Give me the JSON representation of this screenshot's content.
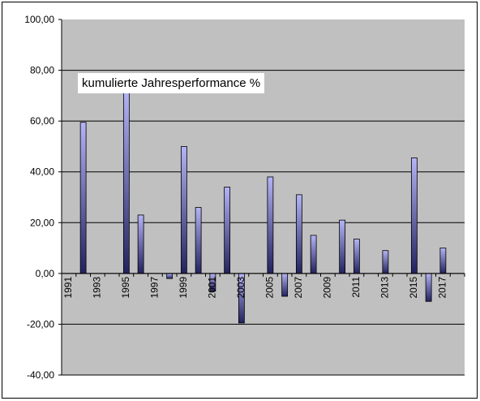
{
  "chart_data": {
    "type": "bar",
    "title": "kumulierte Jahresperformance %",
    "xlabel": "",
    "ylabel": "",
    "ylim": [
      -40,
      100
    ],
    "yticks": [
      100,
      80,
      60,
      40,
      20,
      0,
      -20,
      -40
    ],
    "ytick_labels": [
      "100,00",
      "80,00",
      "60,00",
      "40,00",
      "20,00",
      "0,00",
      "-20,00",
      "-40,00"
    ],
    "grid": "horizontal",
    "categories": [
      "1991",
      "1992",
      "1993",
      "1994",
      "1995",
      "1996",
      "1997",
      "1998",
      "1999",
      "2000",
      "2001",
      "2002",
      "2003",
      "2004",
      "2005",
      "2006",
      "2007",
      "2008",
      "2009",
      "2010",
      "2011",
      "2012",
      "2013",
      "2014",
      "2015",
      "2016",
      "2017",
      "2018"
    ],
    "xtick_labels": [
      "1991",
      "1993",
      "1995",
      "1997",
      "1999",
      "2001",
      "2003",
      "2005",
      "2007",
      "2009",
      "2011",
      "2013",
      "2015",
      "2017"
    ],
    "values": [
      null,
      59.5,
      null,
      null,
      72,
      23,
      null,
      -2,
      50,
      26,
      -7,
      34,
      -19.5,
      null,
      38,
      -9,
      31,
      15,
      null,
      21,
      13.5,
      null,
      9,
      null,
      45.5,
      -11,
      10,
      null
    ],
    "colors": {
      "plot_background": "#c0c0c0",
      "bar_light": "#b4b4f6",
      "bar_dark": "#22225e",
      "bar_outline": "#000000",
      "grid": "#000000"
    }
  }
}
